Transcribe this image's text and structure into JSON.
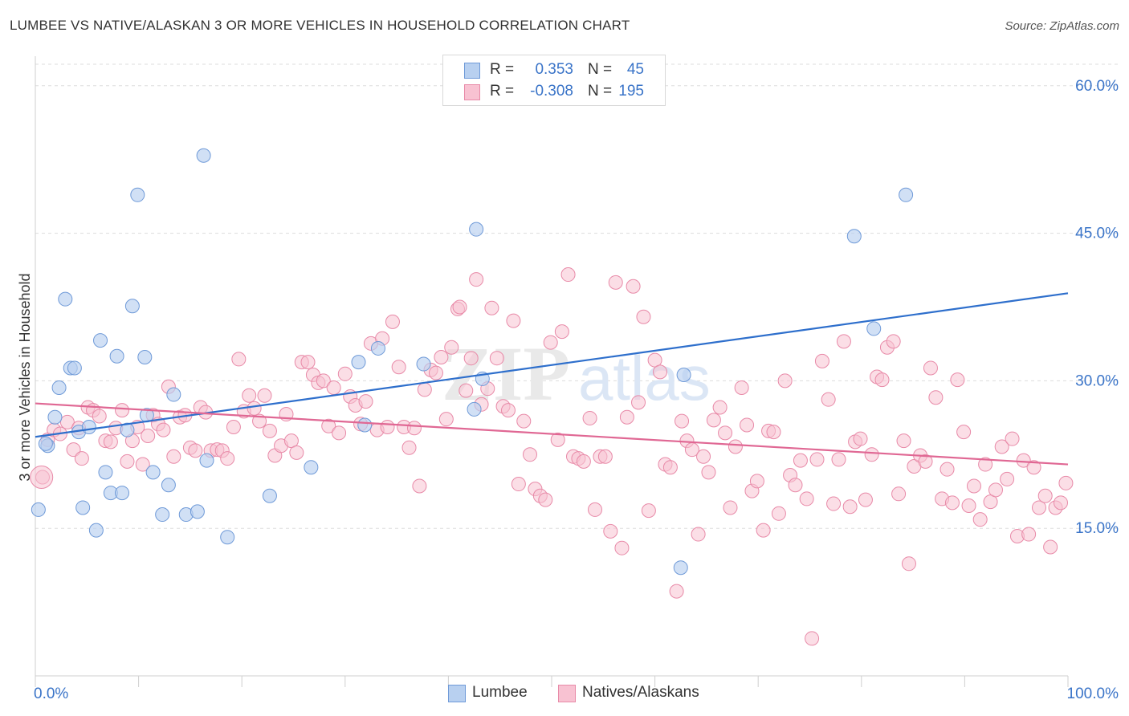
{
  "header": {
    "title": "LUMBEE VS NATIVE/ALASKAN 3 OR MORE VEHICLES IN HOUSEHOLD CORRELATION CHART",
    "source": "Source: ZipAtlas.com"
  },
  "watermark": {
    "zip": "ZIP",
    "atlas": "atlas"
  },
  "legend": {
    "rows": [
      {
        "r_label": "R =",
        "r_value": "0.353",
        "n_label": "N =",
        "n_value": "45"
      },
      {
        "r_label": "R =",
        "r_value": "-0.308",
        "n_label": "N =",
        "n_value": "195"
      }
    ]
  },
  "colors": {
    "blue_fill": "#b8d0f0",
    "blue_stroke": "#6f9ad8",
    "blue_line": "#2e6fcc",
    "pink_fill": "#f8c2d2",
    "pink_stroke": "#e88aa8",
    "pink_line": "#e06894",
    "value_text": "#3a74c8",
    "grid": "#dddddd"
  },
  "chart_data": {
    "type": "scatter",
    "title": "LUMBEE VS NATIVE/ALASKAN 3 OR MORE VEHICLES IN HOUSEHOLD CORRELATION CHART",
    "xlabel": "",
    "ylabel": "3 or more Vehicles in Household",
    "xlim": [
      0,
      100
    ],
    "ylim": [
      0,
      63
    ],
    "x_tick_labels": [
      "0.0%",
      "100.0%"
    ],
    "y_ticks": [
      15,
      30,
      45,
      60
    ],
    "y_tick_labels": [
      "15.0%",
      "30.0%",
      "45.0%",
      "60.0%"
    ],
    "grid": true,
    "legend_position": "top-center",
    "series": [
      {
        "name": "Lumbee",
        "trend": {
          "x": [
            0,
            100
          ],
          "y": [
            24.3,
            38.9
          ]
        },
        "points": [
          [
            0.3,
            16.9
          ],
          [
            1.2,
            23.4
          ],
          [
            1.9,
            26.3
          ],
          [
            2.3,
            29.3
          ],
          [
            2.9,
            38.3
          ],
          [
            3.4,
            31.3
          ],
          [
            3.8,
            31.3
          ],
          [
            4.2,
            24.8
          ],
          [
            4.6,
            17.1
          ],
          [
            5.2,
            25.3
          ],
          [
            5.9,
            14.8
          ],
          [
            6.3,
            34.1
          ],
          [
            6.8,
            20.7
          ],
          [
            7.3,
            18.6
          ],
          [
            7.9,
            32.5
          ],
          [
            8.4,
            18.6
          ],
          [
            8.9,
            25.0
          ],
          [
            9.4,
            37.6
          ],
          [
            9.9,
            48.9
          ],
          [
            10.6,
            32.4
          ],
          [
            10.8,
            26.5
          ],
          [
            11.4,
            20.7
          ],
          [
            12.3,
            16.4
          ],
          [
            12.9,
            19.4
          ],
          [
            13.4,
            28.6
          ],
          [
            14.6,
            16.4
          ],
          [
            15.7,
            16.7
          ],
          [
            16.3,
            52.9
          ],
          [
            16.6,
            21.9
          ],
          [
            18.6,
            14.1
          ],
          [
            22.7,
            18.3
          ],
          [
            26.7,
            21.2
          ],
          [
            31.3,
            31.9
          ],
          [
            31.9,
            25.5
          ],
          [
            33.2,
            33.3
          ],
          [
            37.6,
            31.7
          ],
          [
            42.7,
            45.4
          ],
          [
            43.3,
            30.2
          ],
          [
            42.5,
            27.1
          ],
          [
            62.8,
            30.6
          ],
          [
            62.5,
            11.0
          ],
          [
            79.3,
            44.7
          ],
          [
            81.2,
            35.3
          ],
          [
            84.3,
            48.9
          ],
          [
            1.0,
            23.6
          ]
        ]
      },
      {
        "name": "Natives/Alaskans",
        "trend": {
          "x": [
            0,
            100
          ],
          "y": [
            27.7,
            21.5
          ]
        },
        "points": [
          [
            0.7,
            20.2
          ],
          [
            1.2,
            24.0
          ],
          [
            1.8,
            25.0
          ],
          [
            2.4,
            24.6
          ],
          [
            3.1,
            25.8
          ],
          [
            3.7,
            23.0
          ],
          [
            4.2,
            25.2
          ],
          [
            4.5,
            22.1
          ],
          [
            5.1,
            27.3
          ],
          [
            5.6,
            27.0
          ],
          [
            6.2,
            26.4
          ],
          [
            6.8,
            23.9
          ],
          [
            7.3,
            23.8
          ],
          [
            7.8,
            25.2
          ],
          [
            8.4,
            27.0
          ],
          [
            8.9,
            21.8
          ],
          [
            9.4,
            23.9
          ],
          [
            9.9,
            25.3
          ],
          [
            10.4,
            21.5
          ],
          [
            10.9,
            24.4
          ],
          [
            11.4,
            26.5
          ],
          [
            11.9,
            25.6
          ],
          [
            12.4,
            25.0
          ],
          [
            12.9,
            29.4
          ],
          [
            13.4,
            22.3
          ],
          [
            14.0,
            26.3
          ],
          [
            14.5,
            26.5
          ],
          [
            15.0,
            23.2
          ],
          [
            15.5,
            22.9
          ],
          [
            16.0,
            27.3
          ],
          [
            16.5,
            26.8
          ],
          [
            17.0,
            22.9
          ],
          [
            17.6,
            23.0
          ],
          [
            18.1,
            22.9
          ],
          [
            18.6,
            22.1
          ],
          [
            19.2,
            25.3
          ],
          [
            19.7,
            32.2
          ],
          [
            20.2,
            26.9
          ],
          [
            20.7,
            28.5
          ],
          [
            21.2,
            27.2
          ],
          [
            21.7,
            25.9
          ],
          [
            22.2,
            28.5
          ],
          [
            22.7,
            24.9
          ],
          [
            23.2,
            22.4
          ],
          [
            23.8,
            23.4
          ],
          [
            24.3,
            26.6
          ],
          [
            24.8,
            23.9
          ],
          [
            25.3,
            22.7
          ],
          [
            25.8,
            31.9
          ],
          [
            26.4,
            31.9
          ],
          [
            26.9,
            30.6
          ],
          [
            27.4,
            29.8
          ],
          [
            27.9,
            30.0
          ],
          [
            28.4,
            25.4
          ],
          [
            28.9,
            29.3
          ],
          [
            29.4,
            24.7
          ],
          [
            30.0,
            30.7
          ],
          [
            30.5,
            28.4
          ],
          [
            31.0,
            27.5
          ],
          [
            31.5,
            25.6
          ],
          [
            32.0,
            27.9
          ],
          [
            32.5,
            33.8
          ],
          [
            33.1,
            25.0
          ],
          [
            33.6,
            34.3
          ],
          [
            34.1,
            25.3
          ],
          [
            34.6,
            36.0
          ],
          [
            35.2,
            31.4
          ],
          [
            35.7,
            25.3
          ],
          [
            36.2,
            23.2
          ],
          [
            36.7,
            25.2
          ],
          [
            37.2,
            19.3
          ],
          [
            37.7,
            29.1
          ],
          [
            38.3,
            31.1
          ],
          [
            38.8,
            30.8
          ],
          [
            39.3,
            32.4
          ],
          [
            39.8,
            26.1
          ],
          [
            40.3,
            33.4
          ],
          [
            40.9,
            37.3
          ],
          [
            41.1,
            37.5
          ],
          [
            41.7,
            29.0
          ],
          [
            42.2,
            32.3
          ],
          [
            42.7,
            40.3
          ],
          [
            43.2,
            27.6
          ],
          [
            43.8,
            29.2
          ],
          [
            44.2,
            37.4
          ],
          [
            44.7,
            32.3
          ],
          [
            45.3,
            27.4
          ],
          [
            45.8,
            27.0
          ],
          [
            46.3,
            36.1
          ],
          [
            46.8,
            19.5
          ],
          [
            47.3,
            25.9
          ],
          [
            47.9,
            22.5
          ],
          [
            48.4,
            19.0
          ],
          [
            48.9,
            18.3
          ],
          [
            49.4,
            17.9
          ],
          [
            49.9,
            33.9
          ],
          [
            50.6,
            24.0
          ],
          [
            51.0,
            35.0
          ],
          [
            51.6,
            40.8
          ],
          [
            52.1,
            22.3
          ],
          [
            52.6,
            22.1
          ],
          [
            53.1,
            21.8
          ],
          [
            53.7,
            26.2
          ],
          [
            54.2,
            16.9
          ],
          [
            54.7,
            22.3
          ],
          [
            55.2,
            22.3
          ],
          [
            55.7,
            14.7
          ],
          [
            56.2,
            40.0
          ],
          [
            56.8,
            13.0
          ],
          [
            57.3,
            26.3
          ],
          [
            57.9,
            39.6
          ],
          [
            58.4,
            27.8
          ],
          [
            58.9,
            36.5
          ],
          [
            59.4,
            16.8
          ],
          [
            60.0,
            32.1
          ],
          [
            60.5,
            30.9
          ],
          [
            61.0,
            21.5
          ],
          [
            61.5,
            21.2
          ],
          [
            62.1,
            8.6
          ],
          [
            62.6,
            25.9
          ],
          [
            63.1,
            23.9
          ],
          [
            63.6,
            23.0
          ],
          [
            64.2,
            14.4
          ],
          [
            64.7,
            22.3
          ],
          [
            65.2,
            20.7
          ],
          [
            65.7,
            26.0
          ],
          [
            66.3,
            27.3
          ],
          [
            66.8,
            24.7
          ],
          [
            67.3,
            17.1
          ],
          [
            67.8,
            23.3
          ],
          [
            68.4,
            29.3
          ],
          [
            68.9,
            25.5
          ],
          [
            69.4,
            18.8
          ],
          [
            69.9,
            19.8
          ],
          [
            70.5,
            14.8
          ],
          [
            71.0,
            24.9
          ],
          [
            71.5,
            24.8
          ],
          [
            72.0,
            16.5
          ],
          [
            72.6,
            30.0
          ],
          [
            73.1,
            20.4
          ],
          [
            73.6,
            19.4
          ],
          [
            74.1,
            21.9
          ],
          [
            74.7,
            18.0
          ],
          [
            75.2,
            3.8
          ],
          [
            75.7,
            22.0
          ],
          [
            76.2,
            32.0
          ],
          [
            76.8,
            28.1
          ],
          [
            77.3,
            17.5
          ],
          [
            77.8,
            22.0
          ],
          [
            78.3,
            34.0
          ],
          [
            78.9,
            17.2
          ],
          [
            79.4,
            23.8
          ],
          [
            79.9,
            24.1
          ],
          [
            80.4,
            17.9
          ],
          [
            81.0,
            22.5
          ],
          [
            81.5,
            30.4
          ],
          [
            82.0,
            30.1
          ],
          [
            82.5,
            33.4
          ],
          [
            83.1,
            34.0
          ],
          [
            83.6,
            18.5
          ],
          [
            84.1,
            23.9
          ],
          [
            84.6,
            11.4
          ],
          [
            85.1,
            21.3
          ],
          [
            85.7,
            22.4
          ],
          [
            86.2,
            21.8
          ],
          [
            86.7,
            31.3
          ],
          [
            87.2,
            28.3
          ],
          [
            87.8,
            18.0
          ],
          [
            88.3,
            21.0
          ],
          [
            88.8,
            17.6
          ],
          [
            89.3,
            30.1
          ],
          [
            89.9,
            24.8
          ],
          [
            90.4,
            17.3
          ],
          [
            90.9,
            19.3
          ],
          [
            91.5,
            15.9
          ],
          [
            92.0,
            21.5
          ],
          [
            92.5,
            17.7
          ],
          [
            93.0,
            18.9
          ],
          [
            93.6,
            23.3
          ],
          [
            94.1,
            20.0
          ],
          [
            94.6,
            24.1
          ],
          [
            95.1,
            14.2
          ],
          [
            95.7,
            21.9
          ],
          [
            96.2,
            14.4
          ],
          [
            96.7,
            21.2
          ],
          [
            97.2,
            17.1
          ],
          [
            97.8,
            18.3
          ],
          [
            98.3,
            13.1
          ],
          [
            98.8,
            17.1
          ],
          [
            99.3,
            17.6
          ],
          [
            99.8,
            19.6
          ]
        ]
      }
    ]
  }
}
